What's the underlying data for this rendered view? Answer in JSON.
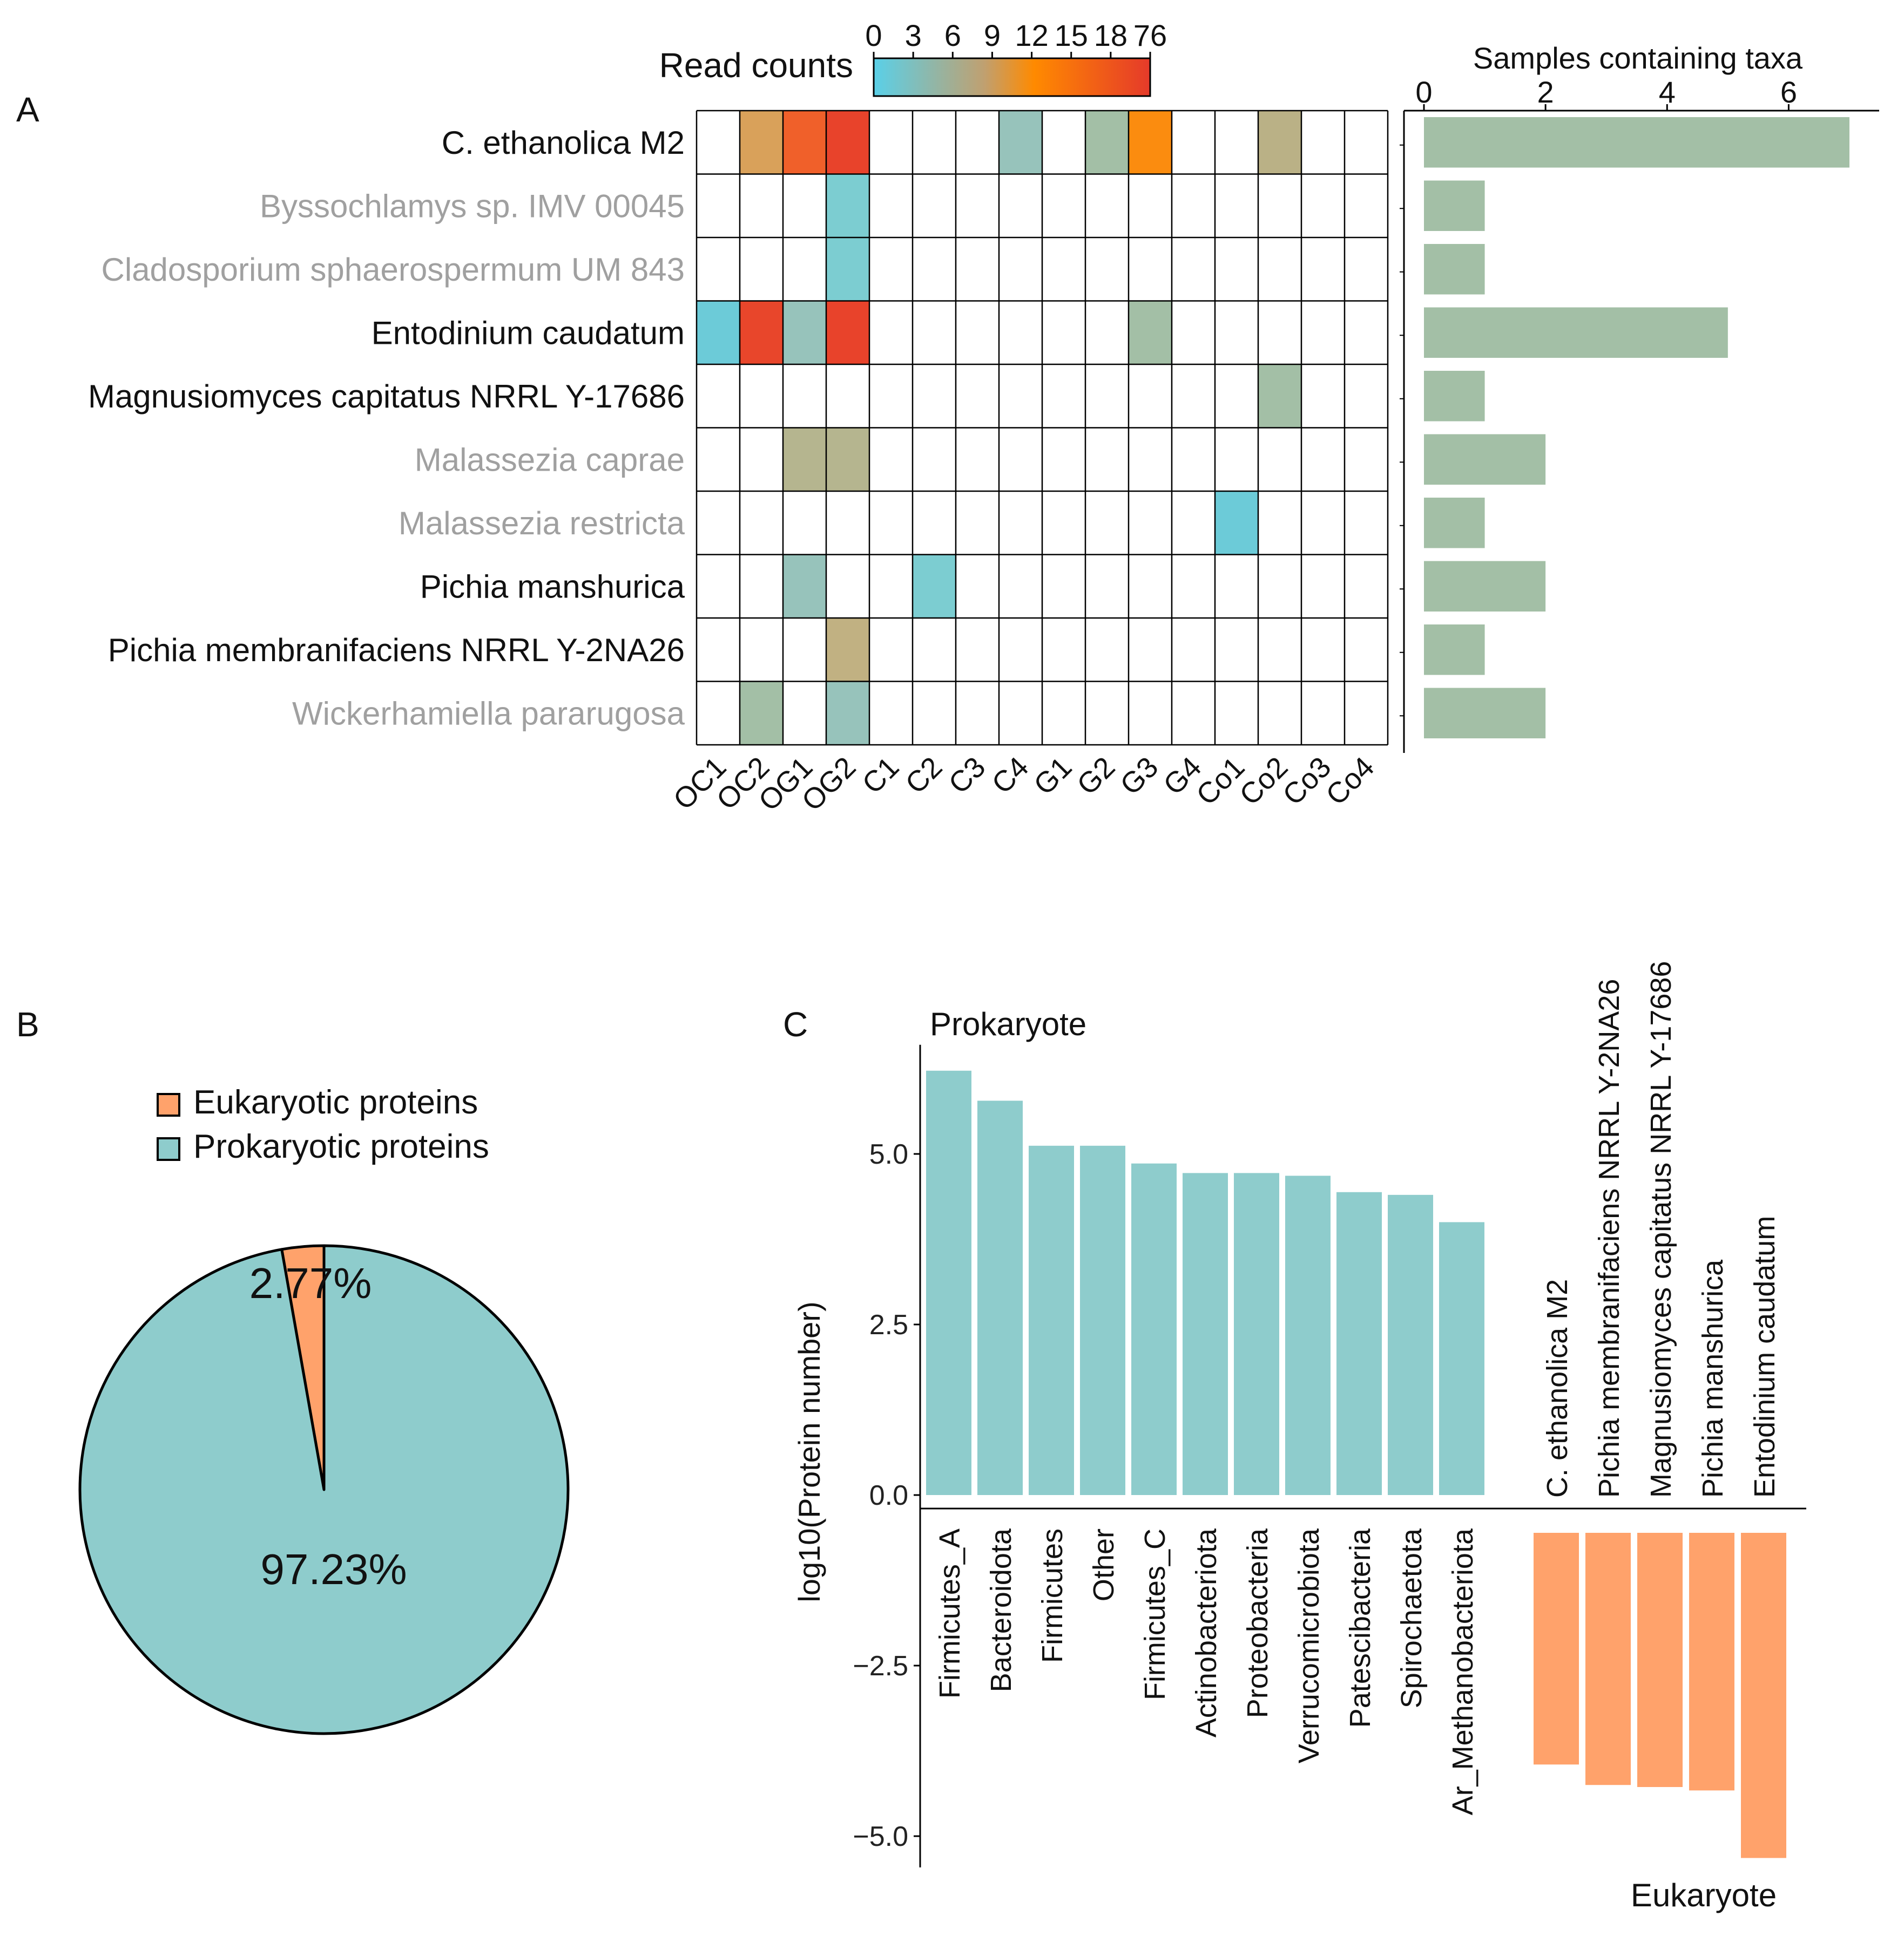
{
  "panel_labels": [
    "A",
    "B",
    "C"
  ],
  "colors": {
    "heat_low": "#5bc8dc",
    "heat_mid": "#fb8c00",
    "heat_high": "#e53a2a",
    "bar_green": "#a3bfa6",
    "prokaryote": "#8ecccc",
    "eukaryote": "#ffa26b",
    "gray_label": "#a0a0a0",
    "black_label": "#111111"
  },
  "chart_data": [
    {
      "id": "heatmap",
      "type": "heatmap",
      "legend_title": "Read counts",
      "legend_ticks": [
        "0",
        "3",
        "6",
        "9",
        "12",
        "15",
        "18",
        "76"
      ],
      "samples": [
        "OC1",
        "OC2",
        "OG1",
        "OG2",
        "C1",
        "C2",
        "C3",
        "C4",
        "G1",
        "G2",
        "G3",
        "G4",
        "Co1",
        "Co2",
        "Co3",
        "Co4"
      ],
      "taxa": [
        {
          "name": "C. ethanolica M2",
          "highlight": true
        },
        {
          "name": "Byssochlamys sp. IMV 00045",
          "highlight": false
        },
        {
          "name": "Cladosporium sphaerospermum UM 843",
          "highlight": false
        },
        {
          "name": "Entodinium caudatum",
          "highlight": true
        },
        {
          "name": "Magnusiomyces capitatus NRRL Y-17686",
          "highlight": true
        },
        {
          "name": "Malassezia caprae",
          "highlight": false
        },
        {
          "name": "Malassezia restricta",
          "highlight": false
        },
        {
          "name": "Pichia manshurica",
          "highlight": true
        },
        {
          "name": "Pichia membranifaciens NRRL Y-2NA26",
          "highlight": true
        },
        {
          "name": "Wickerhamiella pararugosa",
          "highlight": false
        }
      ],
      "cells": [
        {
          "taxon": 0,
          "sample": 1,
          "color": "#d9a15a"
        },
        {
          "taxon": 0,
          "sample": 2,
          "color": "#f0602a"
        },
        {
          "taxon": 0,
          "sample": 3,
          "color": "#e8432b"
        },
        {
          "taxon": 0,
          "sample": 7,
          "color": "#97c3bb"
        },
        {
          "taxon": 0,
          "sample": 9,
          "color": "#a3bfa6"
        },
        {
          "taxon": 0,
          "sample": 10,
          "color": "#fb8c0f"
        },
        {
          "taxon": 0,
          "sample": 13,
          "color": "#bab186"
        },
        {
          "taxon": 1,
          "sample": 3,
          "color": "#7ccdd1"
        },
        {
          "taxon": 2,
          "sample": 3,
          "color": "#7ccdd1"
        },
        {
          "taxon": 3,
          "sample": 0,
          "color": "#6ccbd8"
        },
        {
          "taxon": 3,
          "sample": 1,
          "color": "#e8462b"
        },
        {
          "taxon": 3,
          "sample": 2,
          "color": "#97c3bb"
        },
        {
          "taxon": 3,
          "sample": 3,
          "color": "#e8432b"
        },
        {
          "taxon": 3,
          "sample": 10,
          "color": "#a3bfa6"
        },
        {
          "taxon": 4,
          "sample": 13,
          "color": "#a3bfa6"
        },
        {
          "taxon": 5,
          "sample": 2,
          "color": "#b5b58f"
        },
        {
          "taxon": 5,
          "sample": 3,
          "color": "#b5b58f"
        },
        {
          "taxon": 6,
          "sample": 12,
          "color": "#6ccbd8"
        },
        {
          "taxon": 7,
          "sample": 2,
          "color": "#97c3bb"
        },
        {
          "taxon": 7,
          "sample": 5,
          "color": "#7ccdd1"
        },
        {
          "taxon": 8,
          "sample": 3,
          "color": "#c1b182"
        },
        {
          "taxon": 9,
          "sample": 1,
          "color": "#a3bfa6"
        },
        {
          "taxon": 9,
          "sample": 3,
          "color": "#97c3bb"
        }
      ]
    },
    {
      "id": "samples-bar",
      "type": "bar",
      "orientation": "horizontal",
      "title": "Samples containing taxa",
      "categories": [
        "C. ethanolica M2",
        "Byssochlamys sp. IMV 00045",
        "Cladosporium sphaerospermum UM 843",
        "Entodinium caudatum",
        "Magnusiomyces capitatus NRRL Y-17686",
        "Malassezia caprae",
        "Malassezia restricta",
        "Pichia manshurica",
        "Pichia membranifaciens NRRL Y-2NA26",
        "Wickerhamiella pararugosa"
      ],
      "values": [
        7,
        1,
        1,
        5,
        1,
        2,
        1,
        2,
        1,
        2
      ],
      "xlim": [
        0,
        7.4
      ],
      "ticks": [
        0,
        2,
        4,
        6
      ]
    },
    {
      "id": "pie",
      "type": "pie",
      "slices": [
        {
          "label": "Eukaryotic proteins",
          "value": 2.77,
          "display": "2.77%"
        },
        {
          "label": "Prokaryotic proteins",
          "value": 97.23,
          "display": "97.23%"
        }
      ],
      "legend": "top"
    },
    {
      "id": "protein-bar",
      "type": "bar",
      "ylabel": "log10(Protein number)",
      "ylim": [
        -5.3,
        6.6
      ],
      "yticks": [
        5.0,
        2.5,
        0.0,
        -2.5,
        -5.0
      ],
      "ytick_labels": [
        "5.0",
        "2.5",
        "0.0",
        "−2.5",
        "−5.0"
      ],
      "prokaryote_title": "Prokaryote",
      "eukaryote_title": "Eukaryote",
      "prokaryote": {
        "categories": [
          "Firmicutes_A",
          "Bacteroidota",
          "Firmicutes",
          "Other",
          "Firmicutes_C",
          "Actinobacteriota",
          "Proteobacteria",
          "Verrucomicrobiota",
          "Patescibacteria",
          "Spirochaetota",
          "Ar_Methanobacteriota"
        ],
        "values": [
          6.22,
          5.78,
          5.12,
          5.12,
          4.86,
          4.72,
          4.72,
          4.68,
          4.44,
          4.4,
          4.0
        ]
      },
      "eukaryote": {
        "categories": [
          "C. ethanolica M2",
          "Pichia membranifaciens NRRL Y-2NA26",
          "Magnusiomyces capitatus NRRL Y-17686",
          "Pichia manshurica",
          "Entodinium caudatum"
        ],
        "values": [
          -3.95,
          -4.25,
          -4.28,
          -4.33,
          -5.32
        ]
      }
    }
  ]
}
